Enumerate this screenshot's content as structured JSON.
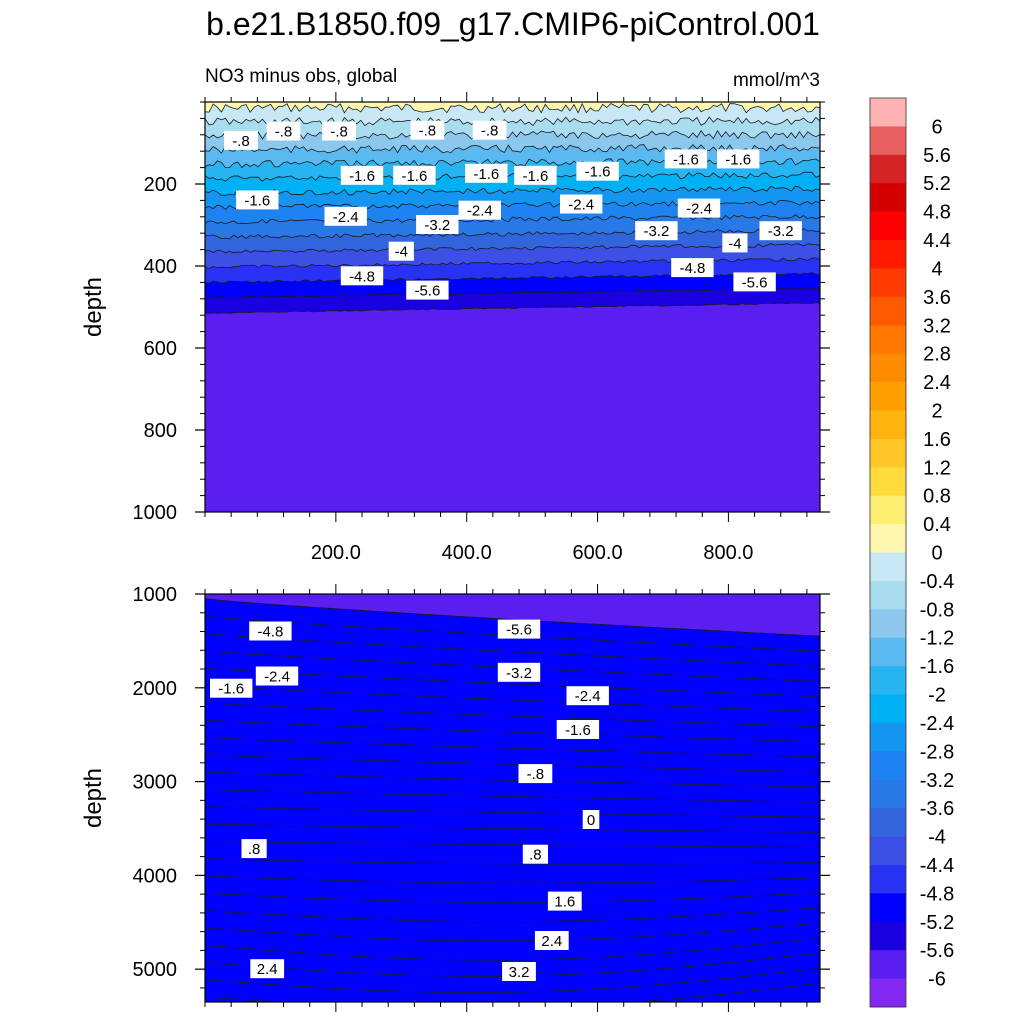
{
  "title": "b.e21.B1850.f09_g17.CMIP6-piControl.001",
  "subtitle_left": "NO3 minus obs, global",
  "subtitle_right": "mmol/m^3",
  "chart_data": [
    {
      "type": "contour",
      "name": "upper",
      "ylabel": "depth",
      "xlabel": "",
      "xlim": [
        0,
        940
      ],
      "ylim": [
        1000,
        0
      ],
      "xticks": [
        200,
        400,
        600,
        800
      ],
      "xtick_labels": [
        "200.0",
        "400.0",
        "600.0",
        "800.0"
      ],
      "yticks": [
        200,
        400,
        600,
        800,
        1000
      ],
      "ytick_labels": [
        "200",
        "400",
        "600",
        "800",
        "1000"
      ],
      "contour_labels": [
        {
          "text": "-.8",
          "x": 55,
          "y": 95
        },
        {
          "text": "-.8",
          "x": 120,
          "y": 72
        },
        {
          "text": "-.8",
          "x": 205,
          "y": 72
        },
        {
          "text": "-.8",
          "x": 340,
          "y": 70
        },
        {
          "text": "-.8",
          "x": 435,
          "y": 70
        },
        {
          "text": "-1.6",
          "x": 80,
          "y": 240
        },
        {
          "text": "-1.6",
          "x": 240,
          "y": 180
        },
        {
          "text": "-1.6",
          "x": 320,
          "y": 180
        },
        {
          "text": "-1.6",
          "x": 430,
          "y": 175
        },
        {
          "text": "-1.6",
          "x": 505,
          "y": 180
        },
        {
          "text": "-1.6",
          "x": 600,
          "y": 170
        },
        {
          "text": "-1.6",
          "x": 735,
          "y": 140
        },
        {
          "text": "-1.6",
          "x": 815,
          "y": 140
        },
        {
          "text": "-2.4",
          "x": 215,
          "y": 280
        },
        {
          "text": "-2.4",
          "x": 420,
          "y": 265
        },
        {
          "text": "-2.4",
          "x": 575,
          "y": 250
        },
        {
          "text": "-2.4",
          "x": 755,
          "y": 260
        },
        {
          "text": "-3.2",
          "x": 355,
          "y": 300
        },
        {
          "text": "-3.2",
          "x": 690,
          "y": 315
        },
        {
          "text": "-3.2",
          "x": 880,
          "y": 315
        },
        {
          "text": "-4",
          "x": 300,
          "y": 365
        },
        {
          "text": "-4",
          "x": 810,
          "y": 345
        },
        {
          "text": "-4.8",
          "x": 240,
          "y": 425
        },
        {
          "text": "-4.8",
          "x": 745,
          "y": 405
        },
        {
          "text": "-5.6",
          "x": 340,
          "y": 460
        },
        {
          "text": "-5.6",
          "x": 840,
          "y": 440
        }
      ]
    },
    {
      "type": "contour",
      "name": "lower",
      "ylabel": "depth",
      "xlabel": "",
      "xlim": [
        0,
        940
      ],
      "ylim": [
        5350,
        1000
      ],
      "yticks": [
        1000,
        2000,
        3000,
        4000,
        5000
      ],
      "ytick_labels": [
        "1000",
        "2000",
        "3000",
        "4000",
        "5000"
      ],
      "contour_labels": [
        {
          "text": "-4.8",
          "x": 100,
          "y": 1400
        },
        {
          "text": "-5.6",
          "x": 480,
          "y": 1380
        },
        {
          "text": "-2.4",
          "x": 110,
          "y": 1880
        },
        {
          "text": "-3.2",
          "x": 480,
          "y": 1840
        },
        {
          "text": "-1.6",
          "x": 40,
          "y": 2010
        },
        {
          "text": "-2.4",
          "x": 585,
          "y": 2090
        },
        {
          "text": "-1.6",
          "x": 570,
          "y": 2450
        },
        {
          "text": "-.8",
          "x": 505,
          "y": 2920
        },
        {
          "text": "0",
          "x": 590,
          "y": 3410
        },
        {
          "text": ".8",
          "x": 75,
          "y": 3720
        },
        {
          "text": ".8",
          "x": 505,
          "y": 3780
        },
        {
          "text": "1.6",
          "x": 550,
          "y": 4280
        },
        {
          "text": "2.4",
          "x": 530,
          "y": 4700
        },
        {
          "text": "2.4",
          "x": 95,
          "y": 5000
        },
        {
          "text": "3.2",
          "x": 480,
          "y": 5030
        }
      ]
    }
  ],
  "colorbar": {
    "labels": [
      "6",
      "5.6",
      "5.2",
      "4.8",
      "4.4",
      "4",
      "3.6",
      "3.2",
      "2.8",
      "2.4",
      "2",
      "1.6",
      "1.2",
      "0.8",
      "0.4",
      "0",
      "-0.4",
      "-0.8",
      "-1.2",
      "-1.6",
      "-2",
      "-2.4",
      "-2.8",
      "-3.2",
      "-3.6",
      "-4",
      "-4.4",
      "-4.8",
      "-5.2",
      "-5.6",
      "-6"
    ],
    "colors": [
      "#ffb3b3",
      "#e86060",
      "#d42424",
      "#d40000",
      "#ff0000",
      "#ff1a00",
      "#ff3c00",
      "#ff5a00",
      "#ff7800",
      "#ff8c00",
      "#ffa000",
      "#ffb40f",
      "#ffc828",
      "#ffdc3c",
      "#ffef73",
      "#fff7b0",
      "#c8e8f5",
      "#aadcf0",
      "#8cc8ee",
      "#5ab9f0",
      "#28b4f0",
      "#00b0f5",
      "#1496f0",
      "#1e82f0",
      "#2878e6",
      "#3264dc",
      "#3c50e6",
      "#2832f5",
      "#0000ff",
      "#1a00e0",
      "#5a1ef0",
      "#8228f0"
    ]
  }
}
